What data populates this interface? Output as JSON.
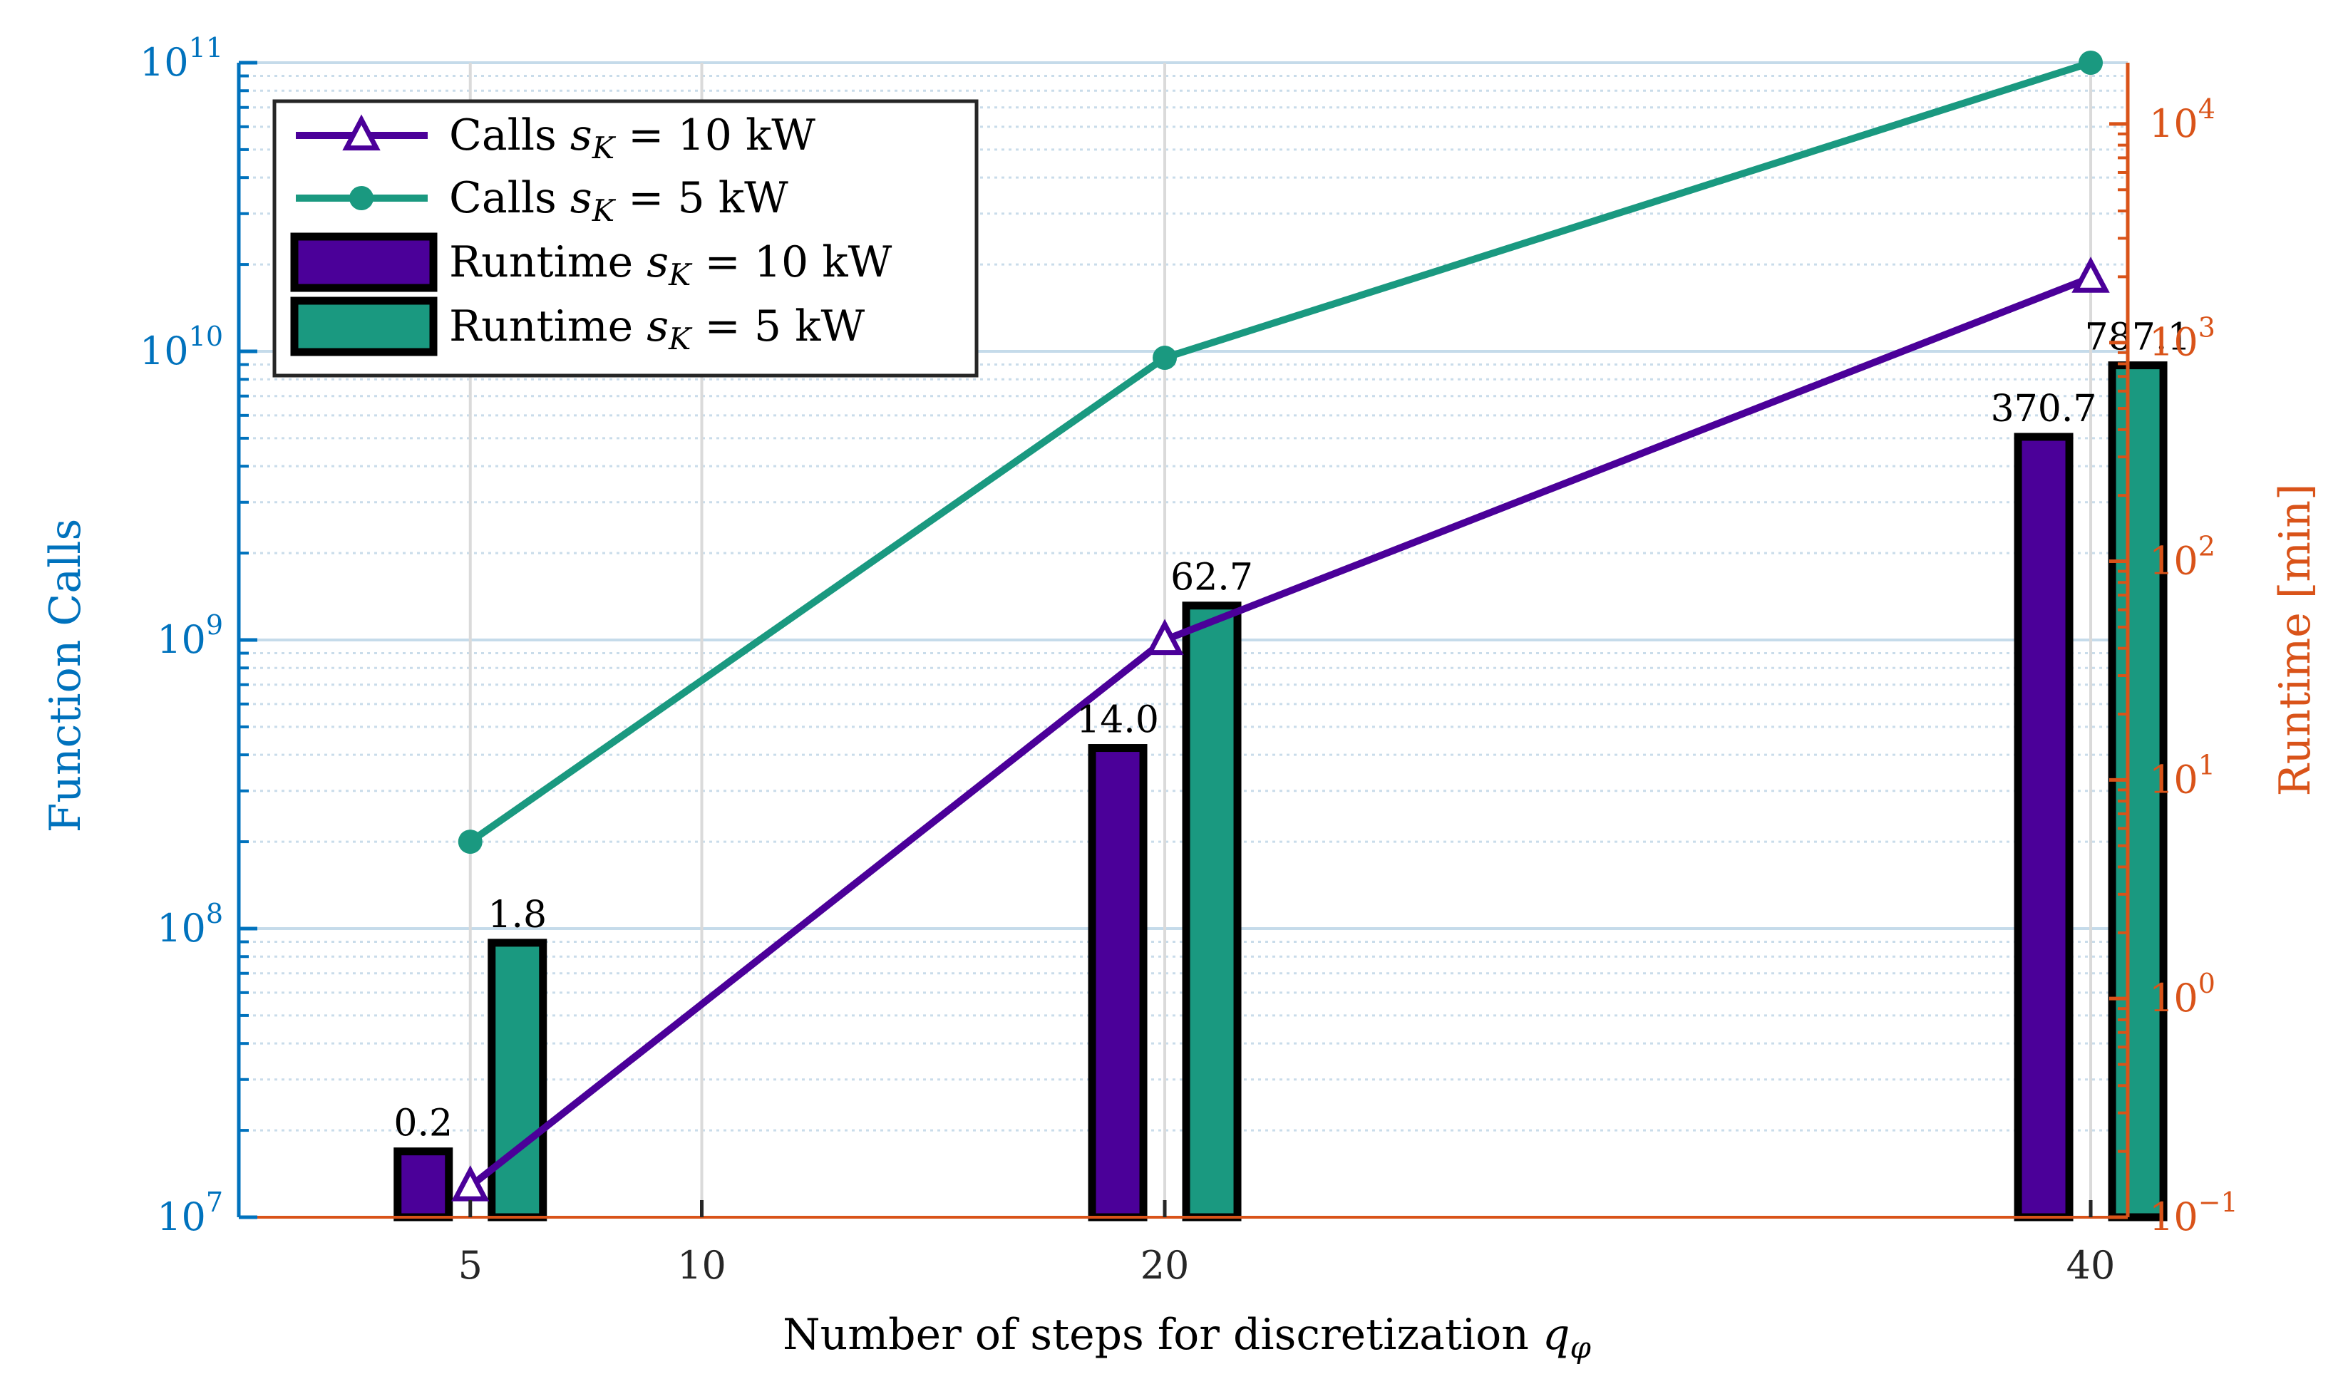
{
  "chart_data": {
    "type": "bar+line",
    "xlabel_text": "Number of steps for discretization ",
    "xlabel_var": "q",
    "xlabel_sub": "φ",
    "xlim": [
      0,
      40.8
    ],
    "x_ticks": [
      5,
      10,
      20,
      40
    ],
    "left_axis": {
      "label": "Function Calls",
      "scale": "log",
      "lim_exp": [
        7,
        11
      ],
      "tick_base": "10",
      "tick_exponents": [
        "7",
        "8",
        "9",
        "10",
        "11"
      ],
      "color": "#0072BD"
    },
    "right_axis": {
      "label": "Runtime [min]",
      "scale": "log",
      "lim_exp": [
        -1,
        4.28
      ],
      "tick_base": "10",
      "tick_exponents": [
        "−1",
        "0",
        "1",
        "2",
        "3",
        "4"
      ],
      "tick_values": [
        -1,
        0,
        1,
        2,
        3,
        4
      ],
      "color": "#D95319"
    },
    "series": [
      {
        "name": "Calls sK = 10 kW",
        "legend_prefix": "Calls ",
        "legend_suffix": " = 10 kW",
        "kind": "line",
        "axis": "left",
        "marker": "triangle",
        "color": "#4B0099",
        "x": [
          5,
          20,
          40
        ],
        "values": [
          12800000,
          1000000000,
          18000000000
        ]
      },
      {
        "name": "Calls sK = 5 kW",
        "legend_prefix": "Calls ",
        "legend_suffix": " = 5 kW",
        "kind": "line",
        "axis": "left",
        "marker": "dot",
        "color": "#1A9980",
        "x": [
          5,
          20,
          40
        ],
        "values": [
          200000000,
          9500000000,
          100000000000
        ]
      },
      {
        "name": "Runtime sK = 10 kW",
        "legend_prefix": "Runtime ",
        "legend_suffix": " = 10 kW",
        "kind": "bar",
        "axis": "right",
        "color": "#4B0099",
        "x": [
          5,
          20,
          40
        ],
        "values": [
          0.2,
          14.0,
          370.7
        ],
        "labels": [
          "0.2",
          "14.0",
          "370.7"
        ]
      },
      {
        "name": "Runtime sK = 5 kW",
        "legend_prefix": "Runtime ",
        "legend_suffix": " = 5 kW",
        "kind": "bar",
        "axis": "right",
        "color": "#1A9980",
        "x": [
          5,
          20,
          40
        ],
        "values": [
          1.8,
          62.7,
          787.1
        ],
        "labels": [
          "1.8",
          "62.7",
          "787.1"
        ]
      }
    ],
    "legend_position": "top-left",
    "legend_var": "s",
    "legend_var_sub": "K",
    "grid": true,
    "minor_grid": true
  }
}
